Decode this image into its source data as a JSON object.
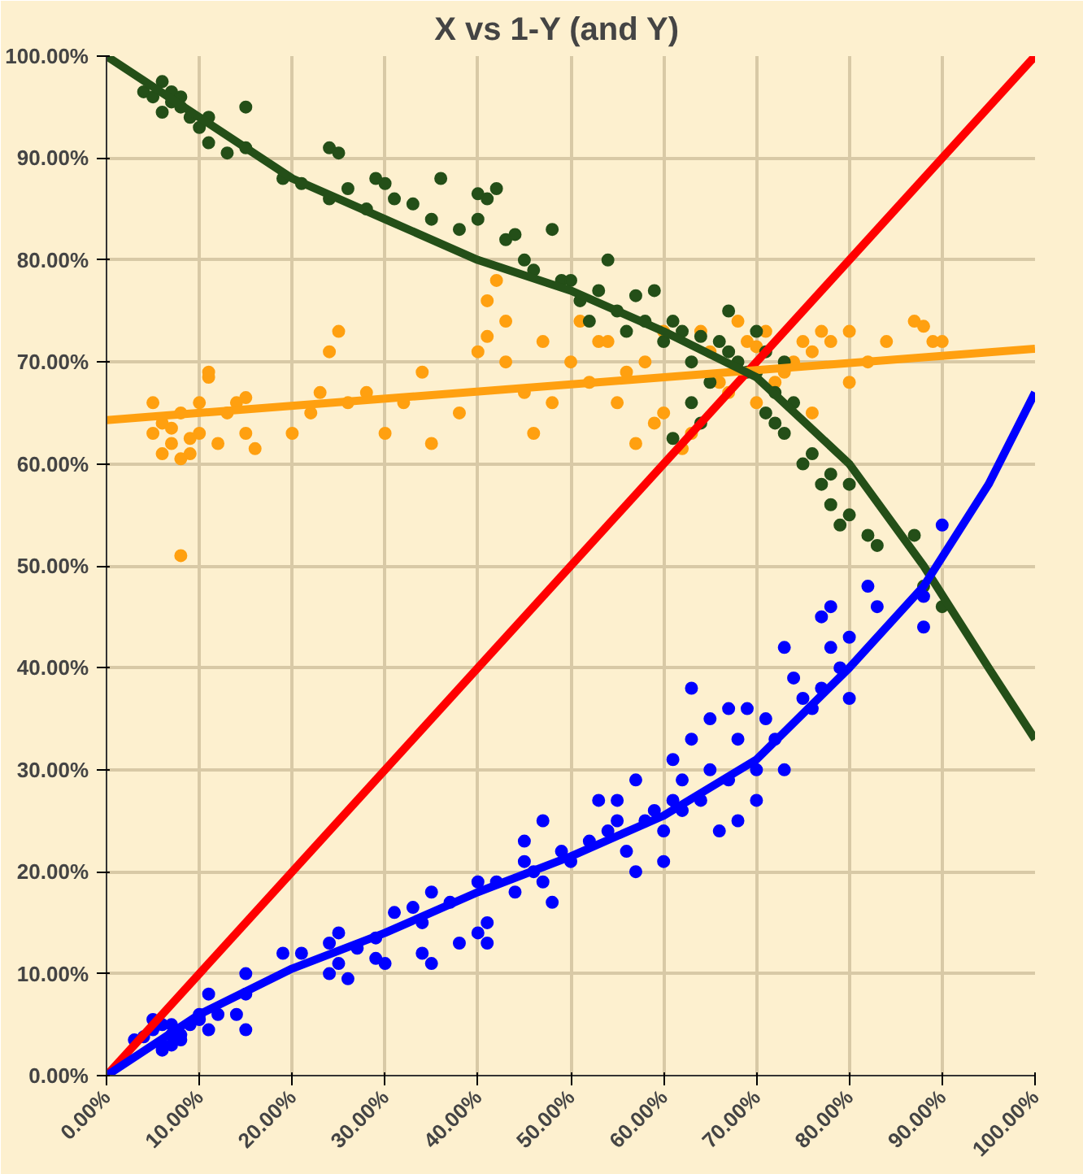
{
  "chart_data": {
    "type": "scatter",
    "title": "X  vs  1-Y  (and Y)",
    "xlim": [
      0,
      100
    ],
    "ylim": [
      0,
      100
    ],
    "xticks": [
      {
        "value": 0,
        "label": "0.00%"
      },
      {
        "value": 10,
        "label": "10.00%"
      },
      {
        "value": 20,
        "label": "20.00%"
      },
      {
        "value": 30,
        "label": "30.00%"
      },
      {
        "value": 40,
        "label": "40.00%"
      },
      {
        "value": 50,
        "label": "50.00%"
      },
      {
        "value": 60,
        "label": "60.00%"
      },
      {
        "value": 70,
        "label": "70.00%"
      },
      {
        "value": 80,
        "label": "80.00%"
      },
      {
        "value": 90,
        "label": "90.00%"
      },
      {
        "value": 100,
        "label": "100.00%"
      }
    ],
    "yticks": [
      {
        "value": 0,
        "label": "0.00%"
      },
      {
        "value": 10,
        "label": "10.00%"
      },
      {
        "value": 20,
        "label": "20.00%"
      },
      {
        "value": 30,
        "label": "30.00%"
      },
      {
        "value": 40,
        "label": "40.00%"
      },
      {
        "value": 50,
        "label": "50.00%"
      },
      {
        "value": 60,
        "label": "60.00%"
      },
      {
        "value": 70,
        "label": "70.00%"
      },
      {
        "value": 80,
        "label": "80.00%"
      },
      {
        "value": 90,
        "label": "90.00%"
      },
      {
        "value": 100,
        "label": "100.00%"
      }
    ],
    "grid": true,
    "series": [
      {
        "marker": "circle",
        "color": "#ffa010",
        "x": [
          5,
          5,
          6,
          6,
          7,
          7,
          8,
          8,
          9,
          9,
          10,
          10,
          11,
          11,
          12,
          13,
          14,
          15,
          15,
          16,
          20,
          22,
          23,
          24,
          25,
          26,
          28,
          30,
          32,
          34,
          35,
          38,
          40,
          41,
          41,
          43,
          45,
          46,
          47,
          48,
          50,
          51,
          52,
          53,
          54,
          55,
          56,
          58,
          60,
          60,
          62,
          63,
          64,
          65,
          66,
          67,
          68,
          69,
          70,
          70,
          71,
          72,
          73,
          74,
          75,
          76,
          77,
          78,
          80,
          82,
          84,
          87,
          88,
          89,
          90,
          8,
          42,
          43,
          59,
          57,
          76,
          80
        ],
        "values": [
          63,
          66,
          61,
          64,
          62,
          63.5,
          60.5,
          65,
          61,
          62.5,
          63,
          66,
          68.5,
          69,
          62,
          65,
          66,
          63,
          66.5,
          61.5,
          63,
          65,
          67,
          71,
          73,
          66,
          67,
          63,
          66,
          69,
          62,
          65,
          71,
          72.5,
          76,
          70,
          67,
          63,
          72,
          66,
          70,
          74,
          68,
          72,
          72,
          66,
          69,
          70,
          73,
          65,
          61.5,
          63,
          73,
          71,
          68,
          67,
          74,
          72,
          66,
          71.5,
          73,
          68,
          69,
          70,
          72,
          71,
          73,
          72,
          73,
          70,
          72,
          74,
          73.5,
          72,
          72,
          51,
          78,
          74,
          64,
          62,
          65,
          68
        ]
      },
      {
        "marker": "circle",
        "color": "#244f18",
        "x": [
          4,
          5,
          6,
          7,
          7,
          8,
          8,
          6,
          9,
          10,
          11,
          11,
          13,
          15,
          15,
          19,
          21,
          24,
          24,
          25,
          26,
          28,
          29,
          30,
          31,
          33,
          35,
          36,
          38,
          40,
          40,
          41,
          42,
          43,
          44,
          45,
          46,
          48,
          49,
          50,
          51,
          52,
          53,
          54,
          55,
          56,
          57,
          58,
          59,
          60,
          61,
          62,
          63,
          63,
          64,
          65,
          66,
          67,
          67,
          68,
          69,
          70,
          71,
          72,
          72,
          73,
          74,
          75,
          76,
          77,
          78,
          78,
          79,
          80,
          80,
          82,
          83,
          87,
          88,
          90,
          61,
          64,
          70,
          73,
          71
        ],
        "values": [
          96.5,
          96,
          97.5,
          95.5,
          96.5,
          95,
          96,
          94.5,
          94,
          93,
          94,
          91.5,
          90.5,
          91,
          95,
          88,
          87.5,
          86,
          91,
          90.5,
          87,
          85,
          88,
          87.5,
          86,
          85.5,
          84,
          88,
          83,
          84,
          86.5,
          86,
          87,
          82,
          82.5,
          80,
          79,
          83,
          78,
          78,
          76,
          74,
          77,
          80,
          75,
          73,
          76.5,
          74,
          77,
          72,
          74,
          73,
          70,
          66,
          64,
          68,
          72,
          75,
          71,
          70,
          69,
          73,
          71,
          67,
          64,
          63,
          66,
          60,
          61,
          58,
          59,
          56,
          54,
          58,
          55,
          53,
          52,
          53,
          48,
          46,
          62.5,
          72.5,
          69,
          70,
          65
        ]
      },
      {
        "marker": "circle",
        "color": "#0000ff",
        "x": [
          3,
          4,
          5,
          5,
          6,
          6,
          6,
          7,
          7,
          7,
          8,
          8,
          9,
          10,
          10,
          11,
          11,
          12,
          14,
          15,
          15,
          15,
          19,
          21,
          24,
          24,
          25,
          25,
          26,
          27,
          29,
          29,
          30,
          31,
          33,
          34,
          34,
          35,
          35,
          37,
          38,
          40,
          40,
          41,
          41,
          42,
          44,
          45,
          45,
          46,
          47,
          47,
          48,
          49,
          50,
          52,
          53,
          54,
          55,
          55,
          56,
          57,
          57,
          58,
          59,
          60,
          60,
          61,
          61,
          62,
          63,
          63,
          64,
          65,
          66,
          67,
          67,
          68,
          68,
          69,
          70,
          71,
          72,
          73,
          73,
          74,
          75,
          76,
          77,
          77,
          78,
          78,
          79,
          80,
          80,
          82,
          83,
          88,
          90,
          88,
          65,
          62,
          70
        ],
        "values": [
          3.5,
          3.8,
          4.5,
          5.5,
          3,
          5,
          2.5,
          4,
          5,
          3,
          4,
          3.5,
          5,
          6,
          5.5,
          4.5,
          8,
          6,
          6,
          8,
          10,
          4.5,
          12,
          12,
          13,
          10,
          14,
          11,
          9.5,
          12.5,
          13.5,
          11.5,
          11,
          16,
          16.5,
          15,
          12,
          18,
          11,
          17,
          13,
          19,
          14,
          15,
          13,
          19,
          18,
          21,
          23,
          20,
          25,
          19,
          17,
          22,
          21,
          23,
          27,
          24,
          27,
          25,
          22,
          29,
          20,
          25,
          26,
          24,
          21,
          31,
          27,
          29,
          38,
          33,
          27,
          30,
          24,
          36,
          29,
          25,
          33,
          36,
          30,
          35,
          33,
          42,
          30,
          39,
          37,
          36,
          45,
          38,
          46,
          42,
          40,
          43,
          37,
          48,
          46,
          47,
          54,
          44,
          35,
          26,
          27
        ]
      },
      {
        "type": "line",
        "marker": "none",
        "color": "#ff0000",
        "x": [
          0,
          100
        ],
        "values": [
          0,
          100
        ]
      },
      {
        "type": "line",
        "marker": "none",
        "color": "#ffa010",
        "x": [
          0,
          100
        ],
        "values": [
          64.3,
          71.3
        ]
      },
      {
        "type": "line",
        "marker": "none",
        "color": "#244f18",
        "x": [
          0,
          10,
          20,
          30,
          40,
          50,
          60,
          70,
          80,
          88,
          95,
          100
        ],
        "values": [
          100,
          94,
          88,
          84,
          80,
          77,
          73,
          68.5,
          60,
          50,
          40,
          33
        ]
      },
      {
        "type": "line",
        "marker": "none",
        "color": "#0000ff",
        "x": [
          0,
          10,
          20,
          30,
          40,
          50,
          60,
          70,
          80,
          88,
          95,
          100
        ],
        "values": [
          0,
          6,
          10.5,
          14,
          18,
          21.5,
          25.5,
          31,
          40,
          48,
          58,
          67
        ]
      }
    ]
  }
}
